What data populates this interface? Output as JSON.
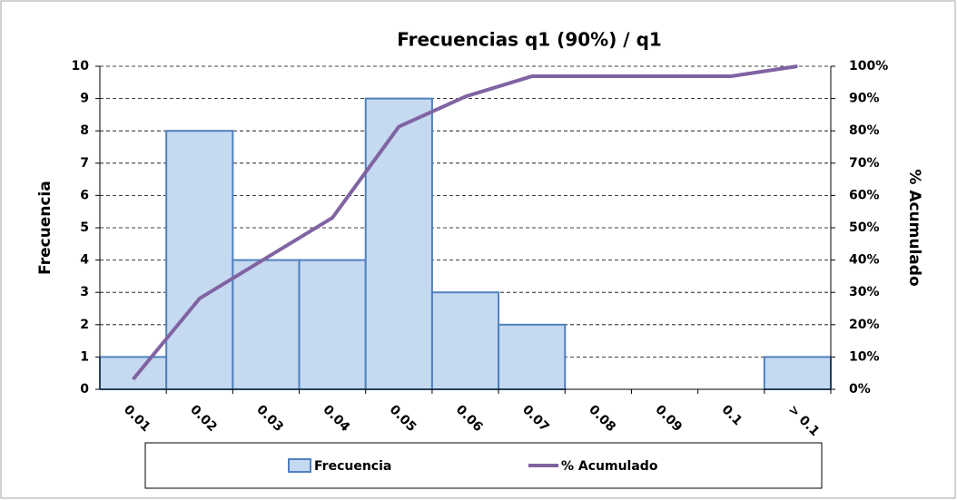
{
  "chart_data": {
    "type": "bar",
    "title": "Frecuencias q1 (90%) / q1",
    "y_label": "Frecuencia",
    "y2_label": "% Acumulado",
    "categories": [
      "0.01",
      "0.02",
      "0.03",
      "0.04",
      "0.05",
      "0.06",
      "0.07",
      "0.08",
      "0.09",
      "0.1",
      "> 0.1"
    ],
    "series": [
      {
        "name": "Frecuencia",
        "type": "bar",
        "color": "#c5d9f1",
        "edge_color": "#4f81bd",
        "values": [
          1,
          8,
          4,
          4,
          9,
          3,
          2,
          0,
          0,
          0,
          1
        ]
      },
      {
        "name": "% Acumulado",
        "type": "line",
        "axis": "y2",
        "color": "#8064a2",
        "values": [
          3.1,
          28.1,
          40.6,
          53.1,
          81.3,
          90.6,
          96.9,
          96.9,
          96.9,
          96.9,
          100
        ]
      }
    ],
    "ylim": [
      0,
      10
    ],
    "yticks": [
      0,
      1,
      2,
      3,
      4,
      5,
      6,
      7,
      8,
      9,
      10
    ],
    "y2lim": [
      0,
      100
    ],
    "y2ticks": [
      {
        "value": 0,
        "label": "0%"
      },
      {
        "value": 10,
        "label": "10%"
      },
      {
        "value": 20,
        "label": "20%"
      },
      {
        "value": 30,
        "label": "30%"
      },
      {
        "value": 40,
        "label": "40%"
      },
      {
        "value": 50,
        "label": "50%"
      },
      {
        "value": 60,
        "label": "60%"
      },
      {
        "value": 70,
        "label": "70%"
      },
      {
        "value": 80,
        "label": "80%"
      },
      {
        "value": 90,
        "label": "90%"
      },
      {
        "value": 100,
        "label": "100%"
      }
    ],
    "grid": true,
    "legend": "bottom"
  }
}
